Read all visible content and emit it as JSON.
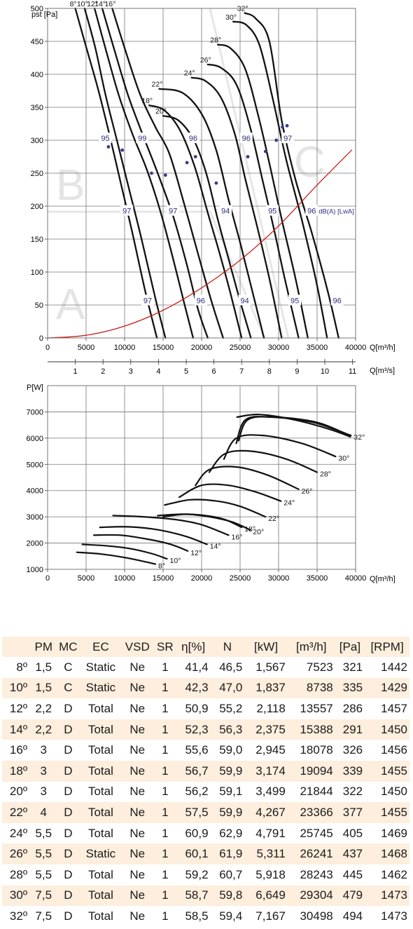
{
  "chart_data": [
    {
      "type": "line",
      "title": "",
      "ylabel": "pst [Pa]",
      "xlabel": "Q[m³/h]",
      "xlabel2": "Q[m³/s]",
      "xlim": [
        0,
        40000
      ],
      "ylim": [
        0,
        500
      ],
      "xticks": [
        0,
        5000,
        10000,
        15000,
        20000,
        25000,
        30000,
        35000,
        40000
      ],
      "yticks": [
        0,
        50,
        100,
        150,
        200,
        250,
        300,
        350,
        400,
        450,
        500
      ],
      "x2ticks": [
        1,
        2,
        3,
        4,
        5,
        6,
        7,
        8,
        9,
        10,
        11
      ],
      "grid": true,
      "zone_labels": [
        "A",
        "B",
        "C"
      ],
      "series": [
        {
          "name": "8°",
          "x": [
            3600,
            4800,
            6500,
            8000,
            9600,
            11000,
            12700,
            14200
          ],
          "y": [
            500,
            450,
            380,
            310,
            230,
            160,
            70,
            0
          ]
        },
        {
          "name": "10°",
          "x": [
            4800,
            6200,
            7500,
            9000,
            10600,
            12200,
            14000,
            15300
          ],
          "y": [
            500,
            440,
            370,
            300,
            225,
            150,
            60,
            0
          ]
        },
        {
          "name": "12°",
          "x": [
            6100,
            7500,
            9200,
            11000,
            12900,
            14700,
            16300,
            17800,
            18900
          ],
          "y": [
            500,
            440,
            370,
            310,
            255,
            190,
            120,
            50,
            0
          ]
        },
        {
          "name": "14°",
          "x": [
            7100,
            8600,
            10400,
            12300,
            14300,
            16300,
            18000,
            19500,
            20800
          ],
          "y": [
            500,
            440,
            370,
            310,
            250,
            185,
            115,
            45,
            0
          ]
        },
        {
          "name": "16°",
          "x": [
            8400,
            10000,
            12000,
            14000,
            15800,
            17700,
            19600,
            21300,
            22800
          ],
          "y": [
            500,
            440,
            370,
            320,
            280,
            205,
            125,
            55,
            0
          ]
        },
        {
          "name": "18°",
          "x": [
            13200,
            15200,
            17200,
            19100,
            20800,
            22300,
            23700,
            25200
          ],
          "y": [
            353,
            345,
            315,
            260,
            190,
            130,
            70,
            0
          ]
        },
        {
          "name": "20°",
          "x": [
            15000,
            17000,
            19000,
            20600,
            22100,
            23500,
            24900,
            26400
          ],
          "y": [
            337,
            330,
            300,
            250,
            180,
            120,
            60,
            0
          ]
        },
        {
          "name": "22°",
          "x": [
            14500,
            17500,
            20000,
            21900,
            23500,
            25000,
            26500,
            28100
          ],
          "y": [
            378,
            372,
            340,
            285,
            210,
            145,
            75,
            0
          ]
        },
        {
          "name": "24°",
          "x": [
            18700,
            20500,
            22500,
            24300,
            25700,
            27300,
            28900,
            30400
          ],
          "y": [
            395,
            390,
            365,
            310,
            240,
            165,
            85,
            0
          ]
        },
        {
          "name": "26°",
          "x": [
            20800,
            22500,
            24500,
            26300,
            27900,
            29400,
            30800,
            32600
          ],
          "y": [
            415,
            410,
            385,
            320,
            240,
            165,
            90,
            0
          ]
        },
        {
          "name": "28°",
          "x": [
            22100,
            23700,
            25600,
            27300,
            28900,
            30500,
            32200,
            33800
          ],
          "y": [
            445,
            440,
            410,
            340,
            260,
            175,
            90,
            0
          ]
        },
        {
          "name": "30°",
          "x": [
            24100,
            25800,
            27500,
            29200,
            31000,
            33000,
            34900,
            36300
          ],
          "y": [
            480,
            475,
            445,
            365,
            270,
            180,
            85,
            0
          ]
        },
        {
          "name": "32°",
          "x": [
            25600,
            27000,
            28800,
            30400,
            32200,
            34300,
            36400,
            37800
          ],
          "y": [
            493,
            485,
            450,
            330,
            240,
            160,
            70,
            0
          ]
        },
        {
          "name": "system",
          "color": "#c8201b",
          "x": [
            0,
            5000,
            10000,
            15000,
            20000,
            25000,
            30000,
            35000,
            39500
          ],
          "y": [
            0,
            4,
            18,
            42,
            76,
            118,
            170,
            232,
            285
          ]
        }
      ],
      "efficiency_points": [
        [
          7900,
          290
        ],
        [
          9700,
          285
        ],
        [
          13500,
          250
        ],
        [
          15300,
          247
        ],
        [
          18100,
          266
        ],
        [
          19200,
          275
        ],
        [
          21900,
          235
        ],
        [
          26000,
          275
        ],
        [
          28300,
          283
        ],
        [
          29700,
          300
        ],
        [
          31100,
          322
        ],
        [
          30500,
          320
        ]
      ],
      "annotations": [
        {
          "text": "95",
          "x": 7500,
          "y": 303
        },
        {
          "text": "99",
          "x": 12300,
          "y": 303
        },
        {
          "text": "96",
          "x": 18900,
          "y": 303
        },
        {
          "text": "96",
          "x": 25800,
          "y": 303
        },
        {
          "text": "97",
          "x": 31200,
          "y": 303
        },
        {
          "text": "97",
          "x": 10300,
          "y": 193
        },
        {
          "text": "97",
          "x": 16300,
          "y": 193
        },
        {
          "text": "94",
          "x": 23100,
          "y": 193
        },
        {
          "text": "95",
          "x": 29200,
          "y": 193
        },
        {
          "text": "96",
          "x": 34300,
          "y": 193
        },
        {
          "text": "97",
          "x": 13000,
          "y": 57
        },
        {
          "text": "96",
          "x": 19900,
          "y": 57
        },
        {
          "text": "94",
          "x": 25600,
          "y": 57
        },
        {
          "text": "95",
          "x": 32100,
          "y": 57
        },
        {
          "text": "96",
          "x": 37600,
          "y": 57
        },
        {
          "text": "dB(A) [LwA]",
          "x": 35200,
          "y": 193
        }
      ]
    },
    {
      "type": "line",
      "title": "",
      "ylabel": "P[W]",
      "xlabel": "Q[m³/h]",
      "xlim": [
        0,
        40000
      ],
      "ylim": [
        1000,
        8000
      ],
      "xticks": [
        0,
        5000,
        10000,
        15000,
        20000,
        25000,
        30000,
        35000,
        40000
      ],
      "yticks": [
        1000,
        2000,
        3000,
        4000,
        5000,
        6000,
        7000
      ],
      "grid": true,
      "series": [
        {
          "name": "8°",
          "x": [
            3800,
            7000,
            10000,
            12500,
            14000
          ],
          "y": [
            1650,
            1580,
            1450,
            1300,
            1200
          ]
        },
        {
          "name": "10°",
          "x": [
            4500,
            7500,
            10500,
            13500,
            15500
          ],
          "y": [
            1950,
            1900,
            1800,
            1600,
            1400
          ]
        },
        {
          "name": "12°",
          "x": [
            6000,
            9500,
            13000,
            16000,
            18200
          ],
          "y": [
            2300,
            2300,
            2150,
            1950,
            1700
          ]
        },
        {
          "name": "14°",
          "x": [
            6800,
            10500,
            14500,
            18000,
            20700
          ],
          "y": [
            2600,
            2620,
            2500,
            2250,
            1950
          ]
        },
        {
          "name": "16°",
          "x": [
            8500,
            12500,
            16500,
            20000,
            23500
          ],
          "y": [
            3050,
            3000,
            2900,
            2700,
            2300
          ]
        },
        {
          "name": "18°",
          "x": [
            14300,
            17500,
            20500,
            23000,
            25200
          ],
          "y": [
            3050,
            3100,
            3050,
            2900,
            2600
          ]
        },
        {
          "name": "20°",
          "x": [
            15000,
            18000,
            21000,
            24000,
            26300
          ],
          "y": [
            3000,
            3100,
            3000,
            2800,
            2500
          ]
        },
        {
          "name": "22°",
          "x": [
            15200,
            18500,
            22000,
            25000,
            28300
          ],
          "y": [
            3450,
            3650,
            3600,
            3400,
            3000
          ]
        },
        {
          "name": "24°",
          "x": [
            17100,
            20000,
            23500,
            27000,
            30300
          ],
          "y": [
            3750,
            4200,
            4200,
            3950,
            3600
          ]
        },
        {
          "name": "26°",
          "x": [
            19200,
            21000,
            24500,
            28500,
            32600
          ],
          "y": [
            4200,
            4800,
            4900,
            4600,
            4050
          ]
        },
        {
          "name": "28°",
          "x": [
            21000,
            23000,
            26500,
            31000,
            35000
          ],
          "y": [
            4700,
            5400,
            5500,
            5200,
            4700
          ]
        },
        {
          "name": "30°",
          "x": [
            22900,
            24500,
            28000,
            33000,
            37400
          ],
          "y": [
            5200,
            6000,
            6100,
            5800,
            5300
          ]
        },
        {
          "name": "32°",
          "x": [
            24500,
            25700,
            29000,
            34500,
            39400
          ],
          "y": [
            5800,
            6700,
            6800,
            6600,
            6100
          ]
        },
        {
          "name": "",
          "x": [
            24800,
            26000,
            29500,
            35000,
            39200
          ],
          "y": [
            5900,
            6700,
            6800,
            6600,
            6100
          ]
        },
        {
          "name": "",
          "x": [
            24600,
            27500,
            32000,
            36500,
            39300
          ],
          "y": [
            6800,
            6900,
            6700,
            6350,
            6050
          ]
        }
      ]
    }
  ],
  "table": {
    "headers": [
      "",
      "PM",
      "MC",
      "EC",
      "VSD",
      "SR",
      "η[%]",
      "N",
      "[kW]",
      "[m³/h]",
      "[Pa]",
      "[RPM]"
    ],
    "rows": [
      [
        "8º",
        "1,5",
        "C",
        "Static",
        "Ne",
        "1",
        "41,4",
        "46,5",
        "1,567",
        "7523",
        "321",
        "1442"
      ],
      [
        "10º",
        "1,5",
        "C",
        "Static",
        "Ne",
        "1",
        "42,3",
        "47,0",
        "1,837",
        "8738",
        "335",
        "1429"
      ],
      [
        "12º",
        "2,2",
        "D",
        "Total",
        "Ne",
        "1",
        "50,9",
        "55,2",
        "2,118",
        "13557",
        "286",
        "1457"
      ],
      [
        "14º",
        "2,2",
        "D",
        "Total",
        "Ne",
        "1",
        "52,3",
        "56,3",
        "2,375",
        "15388",
        "291",
        "1450"
      ],
      [
        "16º",
        "3",
        "D",
        "Total",
        "Ne",
        "1",
        "55,6",
        "59,0",
        "2,945",
        "18078",
        "326",
        "1456"
      ],
      [
        "18º",
        "3",
        "D",
        "Total",
        "Ne",
        "1",
        "56,7",
        "59,9",
        "3,174",
        "19094",
        "339",
        "1455"
      ],
      [
        "20º",
        "3",
        "D",
        "Total",
        "Ne",
        "1",
        "56,2",
        "59,1",
        "3,499",
        "21844",
        "322",
        "1450"
      ],
      [
        "22º",
        "4",
        "D",
        "Total",
        "Ne",
        "1",
        "57,5",
        "59,9",
        "4,267",
        "23366",
        "377",
        "1455"
      ],
      [
        "24º",
        "5,5",
        "D",
        "Total",
        "Ne",
        "1",
        "60,9",
        "62,9",
        "4,791",
        "25745",
        "405",
        "1469"
      ],
      [
        "26º",
        "5,5",
        "D",
        "Static",
        "Ne",
        "1",
        "60,1",
        "61,9",
        "5,311",
        "26241",
        "437",
        "1468"
      ],
      [
        "28º",
        "5,5",
        "D",
        "Total",
        "Ne",
        "1",
        "59,2",
        "60,7",
        "5,918",
        "28243",
        "445",
        "1462"
      ],
      [
        "30º",
        "7,5",
        "D",
        "Total",
        "Ne",
        "1",
        "58,7",
        "59,8",
        "6,649",
        "29304",
        "479",
        "1473"
      ],
      [
        "32º",
        "7,5",
        "D",
        "Total",
        "Ne",
        "1",
        "58,5",
        "59,4",
        "7,167",
        "30498",
        "494",
        "1473"
      ]
    ]
  }
}
